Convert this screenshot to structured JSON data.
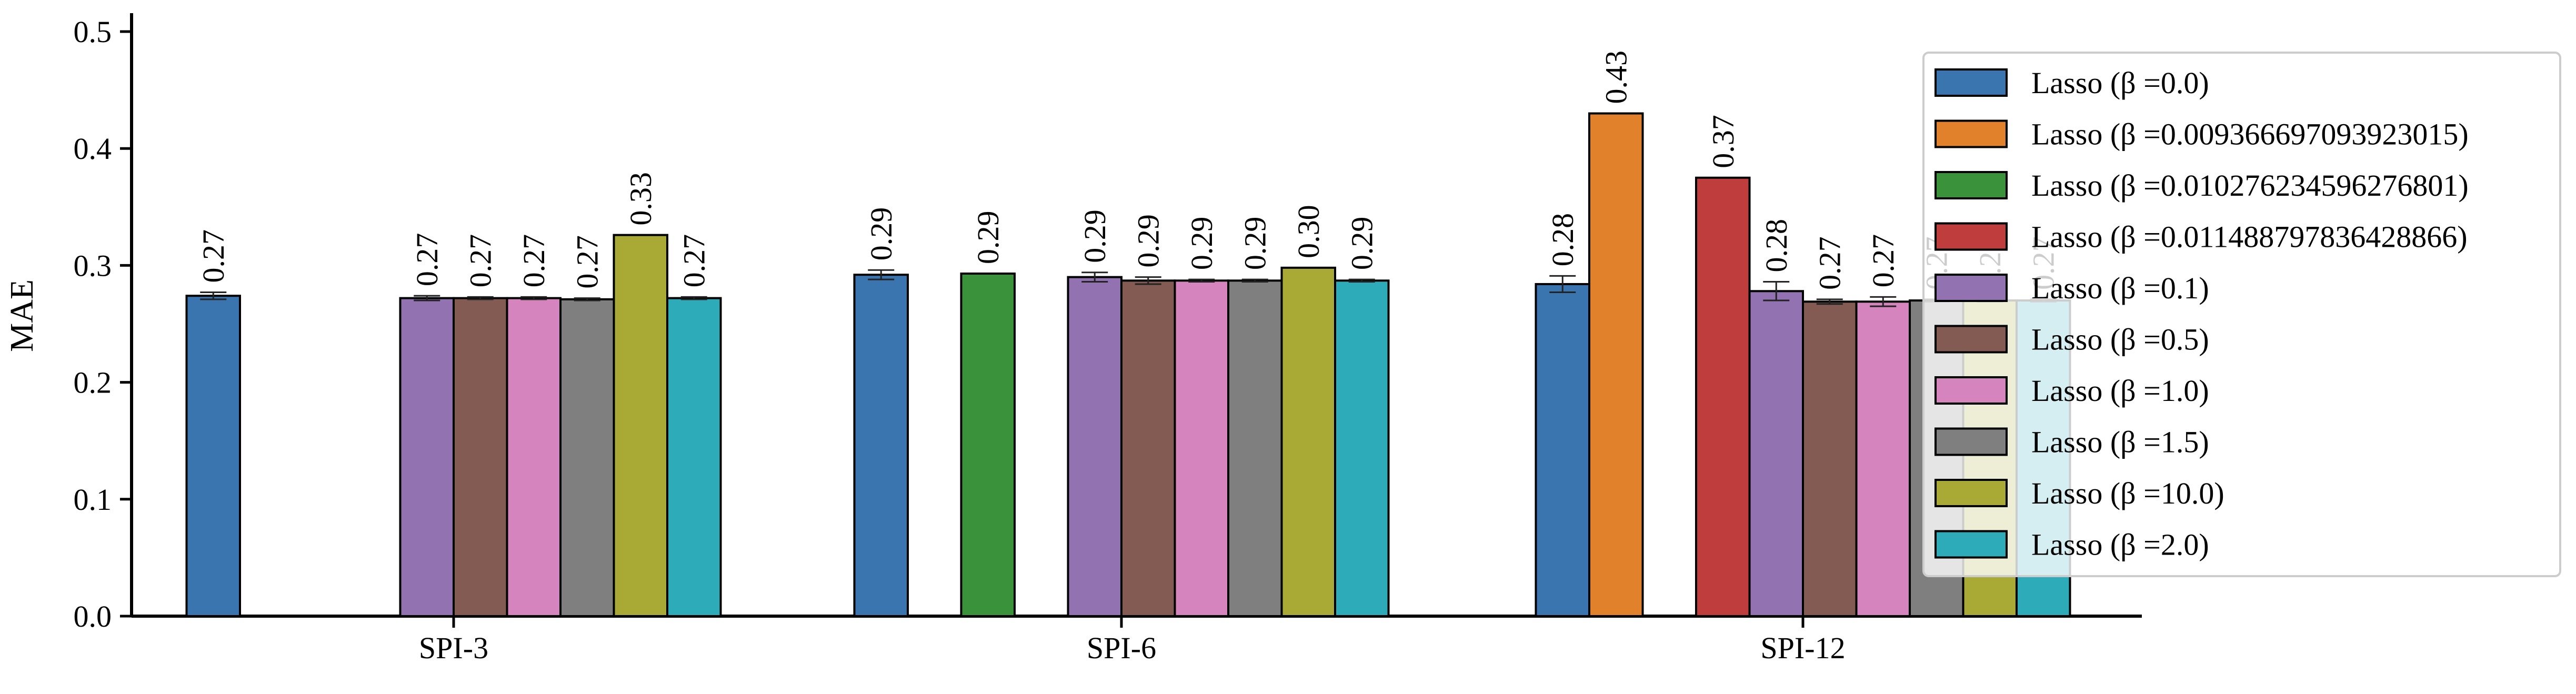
{
  "chart_data": {
    "type": "bar",
    "title": "",
    "xlabel": "",
    "ylabel": "MAE",
    "ylim": [
      0,
      0.52
    ],
    "yticks": [
      "0.0",
      "0.1",
      "0.2",
      "0.3",
      "0.4",
      "0.5"
    ],
    "grid": false,
    "legend_position": "top-right",
    "categories": [
      "SPI-3",
      "SPI-6",
      "SPI-12"
    ],
    "series": [
      {
        "name": "Lasso (β =0.0)",
        "color": "#3b75af",
        "values": [
          0.274,
          0.292,
          0.284
        ],
        "labels": [
          "0.27",
          "0.29",
          "0.28"
        ],
        "err": [
          0.003,
          0.004,
          0.007
        ]
      },
      {
        "name": "Lasso (β =0.009366697093923015)",
        "color": "#e1812c",
        "values": [
          null,
          null,
          0.43
        ],
        "labels": [
          null,
          null,
          "0.43"
        ],
        "err": [
          null,
          null,
          0
        ]
      },
      {
        "name": "Lasso (β =0.010276234596276801)",
        "color": "#3a923a",
        "values": [
          null,
          0.293,
          null
        ],
        "labels": [
          null,
          "0.29",
          null
        ],
        "err": [
          null,
          0,
          null
        ]
      },
      {
        "name": "Lasso (β =0.011488797836428866)",
        "color": "#c03d3e",
        "values": [
          null,
          null,
          0.375
        ],
        "labels": [
          null,
          null,
          "0.37"
        ],
        "err": [
          null,
          null,
          0
        ]
      },
      {
        "name": "Lasso (β =0.1)",
        "color": "#9372b2",
        "values": [
          0.272,
          0.29,
          0.278
        ],
        "labels": [
          "0.27",
          "0.29",
          "0.28"
        ],
        "err": [
          0.002,
          0.004,
          0.008
        ]
      },
      {
        "name": "Lasso (β =0.5)",
        "color": "#845b53",
        "values": [
          0.272,
          0.287,
          0.269
        ],
        "labels": [
          "0.27",
          "0.29",
          "0.27"
        ],
        "err": [
          0.001,
          0.003,
          0.002
        ]
      },
      {
        "name": "Lasso (β =1.0)",
        "color": "#d684bd",
        "values": [
          0.272,
          0.287,
          0.269
        ],
        "labels": [
          "0.27",
          "0.29",
          "0.27"
        ],
        "err": [
          0.001,
          0.001,
          0.004
        ]
      },
      {
        "name": "Lasso (β =1.5)",
        "color": "#7f7f7f",
        "values": [
          0.271,
          0.287,
          0.27
        ],
        "labels": [
          "0.27",
          "0.29",
          "0.27"
        ],
        "err": [
          0.001,
          0.001,
          0.001
        ]
      },
      {
        "name": "Lasso (β =10.0)",
        "color": "#a9aa35",
        "values": [
          0.326,
          0.298,
          0.27
        ],
        "labels": [
          "0.33",
          "0.30",
          "0.27"
        ],
        "err": [
          0,
          0,
          0.001
        ]
      },
      {
        "name": "Lasso (β =2.0)",
        "color": "#2eabb8",
        "values": [
          0.272,
          0.287,
          0.27
        ],
        "labels": [
          "0.27",
          "0.29",
          "0.27"
        ],
        "err": [
          0.001,
          0.001,
          0.001
        ]
      }
    ]
  }
}
